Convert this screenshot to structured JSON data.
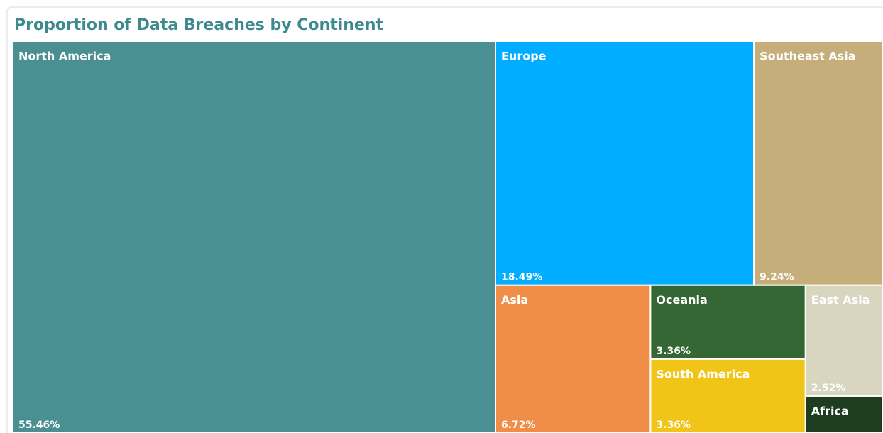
{
  "chart_data": {
    "type": "treemap",
    "title": "Proportion of Data Breaches by Continent",
    "categories": [
      "North America",
      "Europe",
      "Southeast Asia",
      "Asia",
      "Oceania",
      "South America",
      "East Asia",
      "Africa"
    ],
    "values": [
      55.46,
      18.49,
      9.24,
      6.72,
      3.36,
      3.36,
      2.52,
      0.84
    ],
    "value_labels": [
      "55.46%",
      "18.49%",
      "9.24%",
      "6.72%",
      "3.36%",
      "3.36%",
      "2.52%",
      null
    ],
    "colors": [
      "#4a8f92",
      "#00adff",
      "#c5ae7a",
      "#f08e48",
      "#346734",
      "#f0c518",
      "#d8d6bf",
      "#1e3d20"
    ]
  }
}
